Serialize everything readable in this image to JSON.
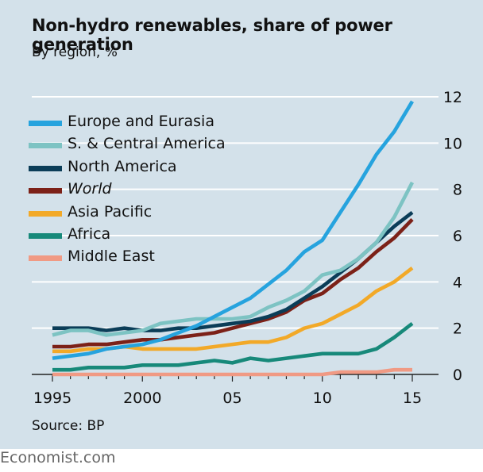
{
  "chart_data": {
    "type": "line",
    "title": "Non-hydro renewables, share of power generation",
    "subtitle": "By region, %",
    "source": "Source: BP",
    "credit": "Economist.com",
    "x": [
      1995,
      1996,
      1997,
      1998,
      1999,
      2000,
      2001,
      2002,
      2003,
      2004,
      2005,
      2006,
      2007,
      2008,
      2009,
      2010,
      2011,
      2012,
      2013,
      2014,
      2015
    ],
    "xticks": [
      {
        "value": 1995,
        "label": "1995"
      },
      {
        "value": 2000,
        "label": "2000"
      },
      {
        "value": 2005,
        "label": "05"
      },
      {
        "value": 2010,
        "label": "10"
      },
      {
        "value": 2015,
        "label": "15"
      }
    ],
    "yticks": [
      {
        "value": 0,
        "label": "0"
      },
      {
        "value": 2,
        "label": "2"
      },
      {
        "value": 4,
        "label": "4"
      },
      {
        "value": 6,
        "label": "6"
      },
      {
        "value": 8,
        "label": "8"
      },
      {
        "value": 10,
        "label": "10"
      },
      {
        "value": 12,
        "label": "12"
      }
    ],
    "ylim": [
      0,
      12
    ],
    "xlim": [
      1995,
      2015
    ],
    "series": [
      {
        "name": "Europe and Eurasia",
        "italic": false,
        "color": "#26a3de",
        "values": [
          0.7,
          0.8,
          0.9,
          1.1,
          1.2,
          1.3,
          1.5,
          1.8,
          2.1,
          2.5,
          2.9,
          3.3,
          3.9,
          4.5,
          5.3,
          5.8,
          7.0,
          8.2,
          9.5,
          10.5,
          11.8
        ]
      },
      {
        "name": "S. & Central America",
        "italic": false,
        "color": "#7dc3c3",
        "values": [
          1.7,
          1.9,
          1.9,
          1.7,
          1.8,
          1.9,
          2.2,
          2.3,
          2.4,
          2.4,
          2.4,
          2.5,
          2.9,
          3.2,
          3.6,
          4.3,
          4.5,
          5.0,
          5.7,
          6.8,
          8.3
        ]
      },
      {
        "name": "North America",
        "italic": false,
        "color": "#0b3d58",
        "values": [
          2.0,
          2.0,
          2.0,
          1.9,
          2.0,
          1.9,
          1.9,
          2.0,
          2.0,
          2.1,
          2.2,
          2.3,
          2.5,
          2.8,
          3.3,
          3.8,
          4.4,
          5.0,
          5.7,
          6.4,
          7.0
        ]
      },
      {
        "name": "World",
        "italic": true,
        "color": "#7c2118",
        "values": [
          1.2,
          1.2,
          1.3,
          1.3,
          1.4,
          1.5,
          1.5,
          1.6,
          1.7,
          1.8,
          2.0,
          2.2,
          2.4,
          2.7,
          3.2,
          3.5,
          4.1,
          4.6,
          5.3,
          5.9,
          6.7
        ]
      },
      {
        "name": "Asia Pacific",
        "italic": false,
        "color": "#f2a928",
        "values": [
          1.0,
          1.0,
          1.1,
          1.1,
          1.2,
          1.1,
          1.1,
          1.1,
          1.1,
          1.2,
          1.3,
          1.4,
          1.4,
          1.6,
          2.0,
          2.2,
          2.6,
          3.0,
          3.6,
          4.0,
          4.6
        ]
      },
      {
        "name": "Africa",
        "italic": false,
        "color": "#17897a",
        "values": [
          0.2,
          0.2,
          0.3,
          0.3,
          0.3,
          0.4,
          0.4,
          0.4,
          0.5,
          0.6,
          0.5,
          0.7,
          0.6,
          0.7,
          0.8,
          0.9,
          0.9,
          0.9,
          1.1,
          1.6,
          2.2
        ]
      },
      {
        "name": "Middle East",
        "italic": false,
        "color": "#f09a84",
        "values": [
          0.0,
          0.0,
          0.0,
          0.0,
          0.0,
          0.0,
          0.0,
          0.0,
          0.0,
          0.0,
          0.0,
          0.0,
          0.0,
          0.0,
          0.0,
          0.0,
          0.1,
          0.1,
          0.1,
          0.2,
          0.2
        ]
      }
    ]
  }
}
